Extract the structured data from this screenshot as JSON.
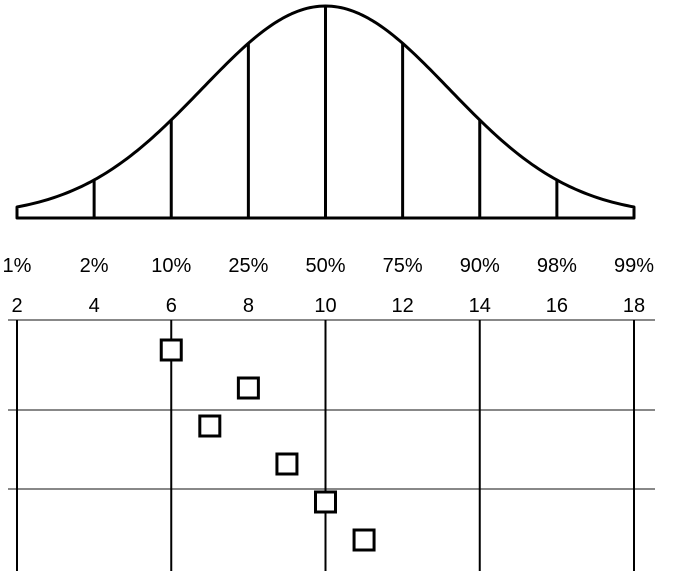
{
  "chart_data": [
    {
      "type": "area",
      "distribution": "normal",
      "percentile_labels": [
        "1%",
        "2%",
        "10%",
        "25%",
        "50%",
        "75%",
        "90%",
        "98%",
        "99%"
      ],
      "percentile_ticks": [
        2,
        4,
        6,
        8,
        10,
        12,
        14,
        16,
        18
      ],
      "divider_lines_at": [
        4,
        6,
        8,
        10,
        12,
        14,
        16
      ],
      "mean": 10,
      "sd": 3.2,
      "xlim": [
        2,
        18
      ],
      "colors": {
        "line": "#000000",
        "fill": "#ffffff"
      }
    },
    {
      "type": "scatter",
      "x_tick_labels": [
        "2",
        "4",
        "6",
        "8",
        "10",
        "12",
        "14",
        "16",
        "18"
      ],
      "xlim": [
        2,
        18
      ],
      "points": [
        {
          "x": 6,
          "row": 1
        },
        {
          "x": 8,
          "row": 2
        },
        {
          "x": 7,
          "row": 3
        },
        {
          "x": 9,
          "row": 4
        },
        {
          "x": 10,
          "row": 5
        },
        {
          "x": 11,
          "row": 6
        }
      ],
      "vertical_gridlines_at": [
        2,
        6,
        10,
        14,
        18
      ],
      "grid": true,
      "marker": "open-square",
      "colors": {
        "marker": "#000000",
        "grid_vertical": "#000000",
        "grid_horizontal": "#888888"
      }
    }
  ]
}
